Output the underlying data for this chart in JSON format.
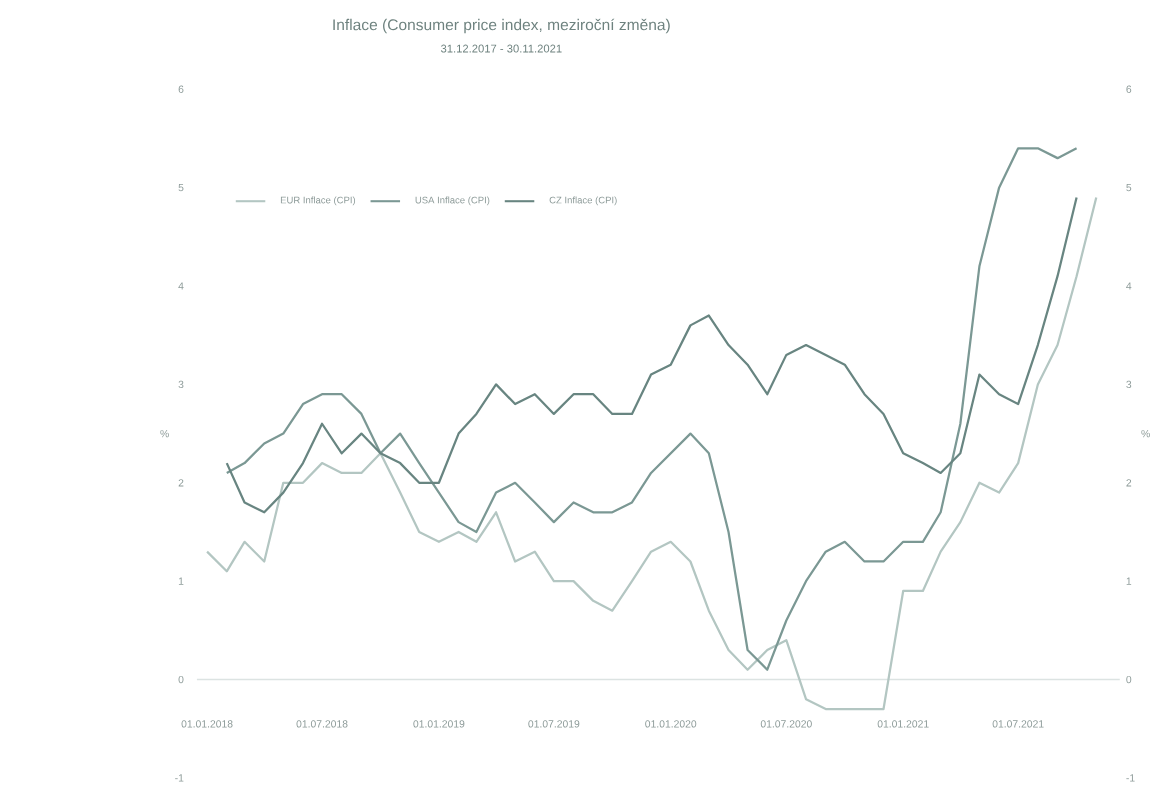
{
  "chart_data": {
    "type": "line",
    "title": "Inflace (Consumer price index, meziroční změna)",
    "subtitle": "31.12.2017 - 30.11.2021",
    "ylabel": "%",
    "y2label": "%",
    "x": [
      "2018-01-01",
      "2018-02-01",
      "2018-03-01",
      "2018-04-01",
      "2018-05-01",
      "2018-06-01",
      "2018-07-01",
      "2018-08-01",
      "2018-09-01",
      "2018-10-01",
      "2018-11-01",
      "2018-12-01",
      "2019-01-01",
      "2019-02-01",
      "2019-03-01",
      "2019-04-01",
      "2019-05-01",
      "2019-06-01",
      "2019-07-01",
      "2019-08-01",
      "2019-09-01",
      "2019-10-01",
      "2019-11-01",
      "2019-12-01",
      "2020-01-01",
      "2020-02-01",
      "2020-03-01",
      "2020-04-01",
      "2020-05-01",
      "2020-06-01",
      "2020-07-01",
      "2020-08-01",
      "2020-09-01",
      "2020-10-01",
      "2020-11-01",
      "2020-12-01",
      "2021-01-01",
      "2021-02-01",
      "2021-03-01",
      "2021-04-01",
      "2021-05-01",
      "2021-06-01",
      "2021-07-01",
      "2021-08-01",
      "2021-09-01",
      "2021-10-01",
      "2021-11-01"
    ],
    "series": [
      {
        "name": "EUR Inflace (CPI)",
        "color": "#b3c6c2",
        "values": [
          1.3,
          1.1,
          1.4,
          1.2,
          2.0,
          2.0,
          2.2,
          2.1,
          2.1,
          2.3,
          1.9,
          1.5,
          1.4,
          1.5,
          1.4,
          1.7,
          1.2,
          1.3,
          1.0,
          1.0,
          0.8,
          0.7,
          1.0,
          1.3,
          1.4,
          1.2,
          0.7,
          0.3,
          0.1,
          0.3,
          0.4,
          -0.2,
          -0.3,
          -0.3,
          -0.3,
          -0.3,
          0.9,
          0.9,
          1.3,
          1.6,
          2.0,
          1.9,
          2.2,
          3.0,
          3.4,
          4.1,
          4.9
        ]
      },
      {
        "name": "USA Inflace (CPI)",
        "color": "#7b9894",
        "values": [
          null,
          2.1,
          2.2,
          2.4,
          2.5,
          2.8,
          2.9,
          2.9,
          2.7,
          2.3,
          2.5,
          2.2,
          1.9,
          1.6,
          1.5,
          1.9,
          2.0,
          1.8,
          1.6,
          1.8,
          1.7,
          1.7,
          1.8,
          2.1,
          2.3,
          2.5,
          2.3,
          1.5,
          0.3,
          0.1,
          0.6,
          1.0,
          1.3,
          1.4,
          1.2,
          1.2,
          1.4,
          1.4,
          1.7,
          2.6,
          4.2,
          5.0,
          5.4,
          5.4,
          5.3,
          5.4,
          null
        ]
      },
      {
        "name": "CZ Inflace (CPI)",
        "color": "#688581",
        "values": [
          null,
          2.2,
          1.8,
          1.7,
          1.9,
          2.2,
          2.6,
          2.3,
          2.5,
          2.3,
          2.2,
          2.0,
          2.0,
          2.5,
          2.7,
          3.0,
          2.8,
          2.9,
          2.7,
          2.9,
          2.9,
          2.7,
          2.7,
          3.1,
          3.2,
          3.6,
          3.7,
          3.4,
          3.2,
          2.9,
          3.3,
          3.4,
          3.3,
          3.2,
          2.9,
          2.7,
          2.3,
          2.2,
          2.1,
          2.3,
          3.1,
          2.9,
          2.8,
          3.4,
          4.1,
          4.9,
          null
        ]
      }
    ],
    "xlim": [
      "2017-12-16",
      "2021-12-08"
    ],
    "xticks": [
      {
        "value": "2018-01-01",
        "label": "01.01.2018"
      },
      {
        "value": "2018-07-01",
        "label": "01.07.2018"
      },
      {
        "value": "2019-01-01",
        "label": "01.01.2019"
      },
      {
        "value": "2019-07-01",
        "label": "01.07.2019"
      },
      {
        "value": "2020-01-01",
        "label": "01.01.2020"
      },
      {
        "value": "2020-07-01",
        "label": "01.07.2020"
      },
      {
        "value": "2021-01-01",
        "label": "01.01.2021"
      },
      {
        "value": "2021-07-01",
        "label": "01.07.2021"
      }
    ],
    "ylim": [
      -1,
      6
    ],
    "yticks": [
      -1,
      0,
      1,
      2,
      3,
      4,
      5,
      6
    ],
    "y2lim": [
      -1,
      6
    ],
    "y2ticks": [
      -1,
      0,
      1,
      2,
      3,
      4,
      5,
      6
    ],
    "legend": "top left",
    "marker": "none",
    "line_style": "solid"
  }
}
